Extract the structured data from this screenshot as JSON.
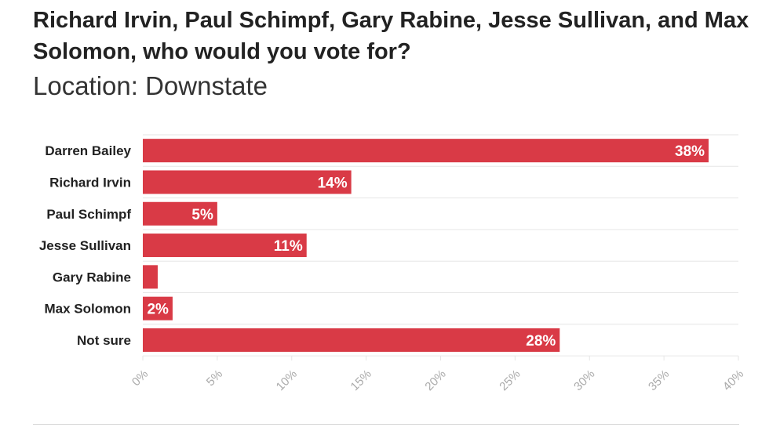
{
  "header": {
    "title": "Richard Irvin, Paul Schimpf, Gary Rabine, Jesse Sullivan, and Max Solomon, who would you vote for?",
    "subtitle": "Location: Downstate"
  },
  "colors": {
    "bar": "#d93a46",
    "grid": "#e6e6e6",
    "tick_label": "#aaaaaa",
    "category_label": "#222222",
    "value_label": "#ffffff"
  },
  "chart_data": {
    "type": "bar",
    "orientation": "horizontal",
    "categories": [
      "Darren Bailey",
      "Richard Irvin",
      "Paul Schimpf",
      "Jesse Sullivan",
      "Gary Rabine",
      "Max Solomon",
      "Not sure"
    ],
    "values": [
      38,
      14,
      5,
      11,
      1,
      2,
      28
    ],
    "value_labels": [
      "38%",
      "14%",
      "5%",
      "11%",
      "",
      "2%",
      "28%"
    ],
    "xlim": [
      0,
      40
    ],
    "xticks": [
      0,
      5,
      10,
      15,
      20,
      25,
      30,
      35,
      40
    ],
    "xtick_labels": [
      "0%",
      "5%",
      "10%",
      "15%",
      "20%",
      "25%",
      "30%",
      "35%",
      "40%"
    ],
    "grid": true,
    "legend": "none"
  }
}
